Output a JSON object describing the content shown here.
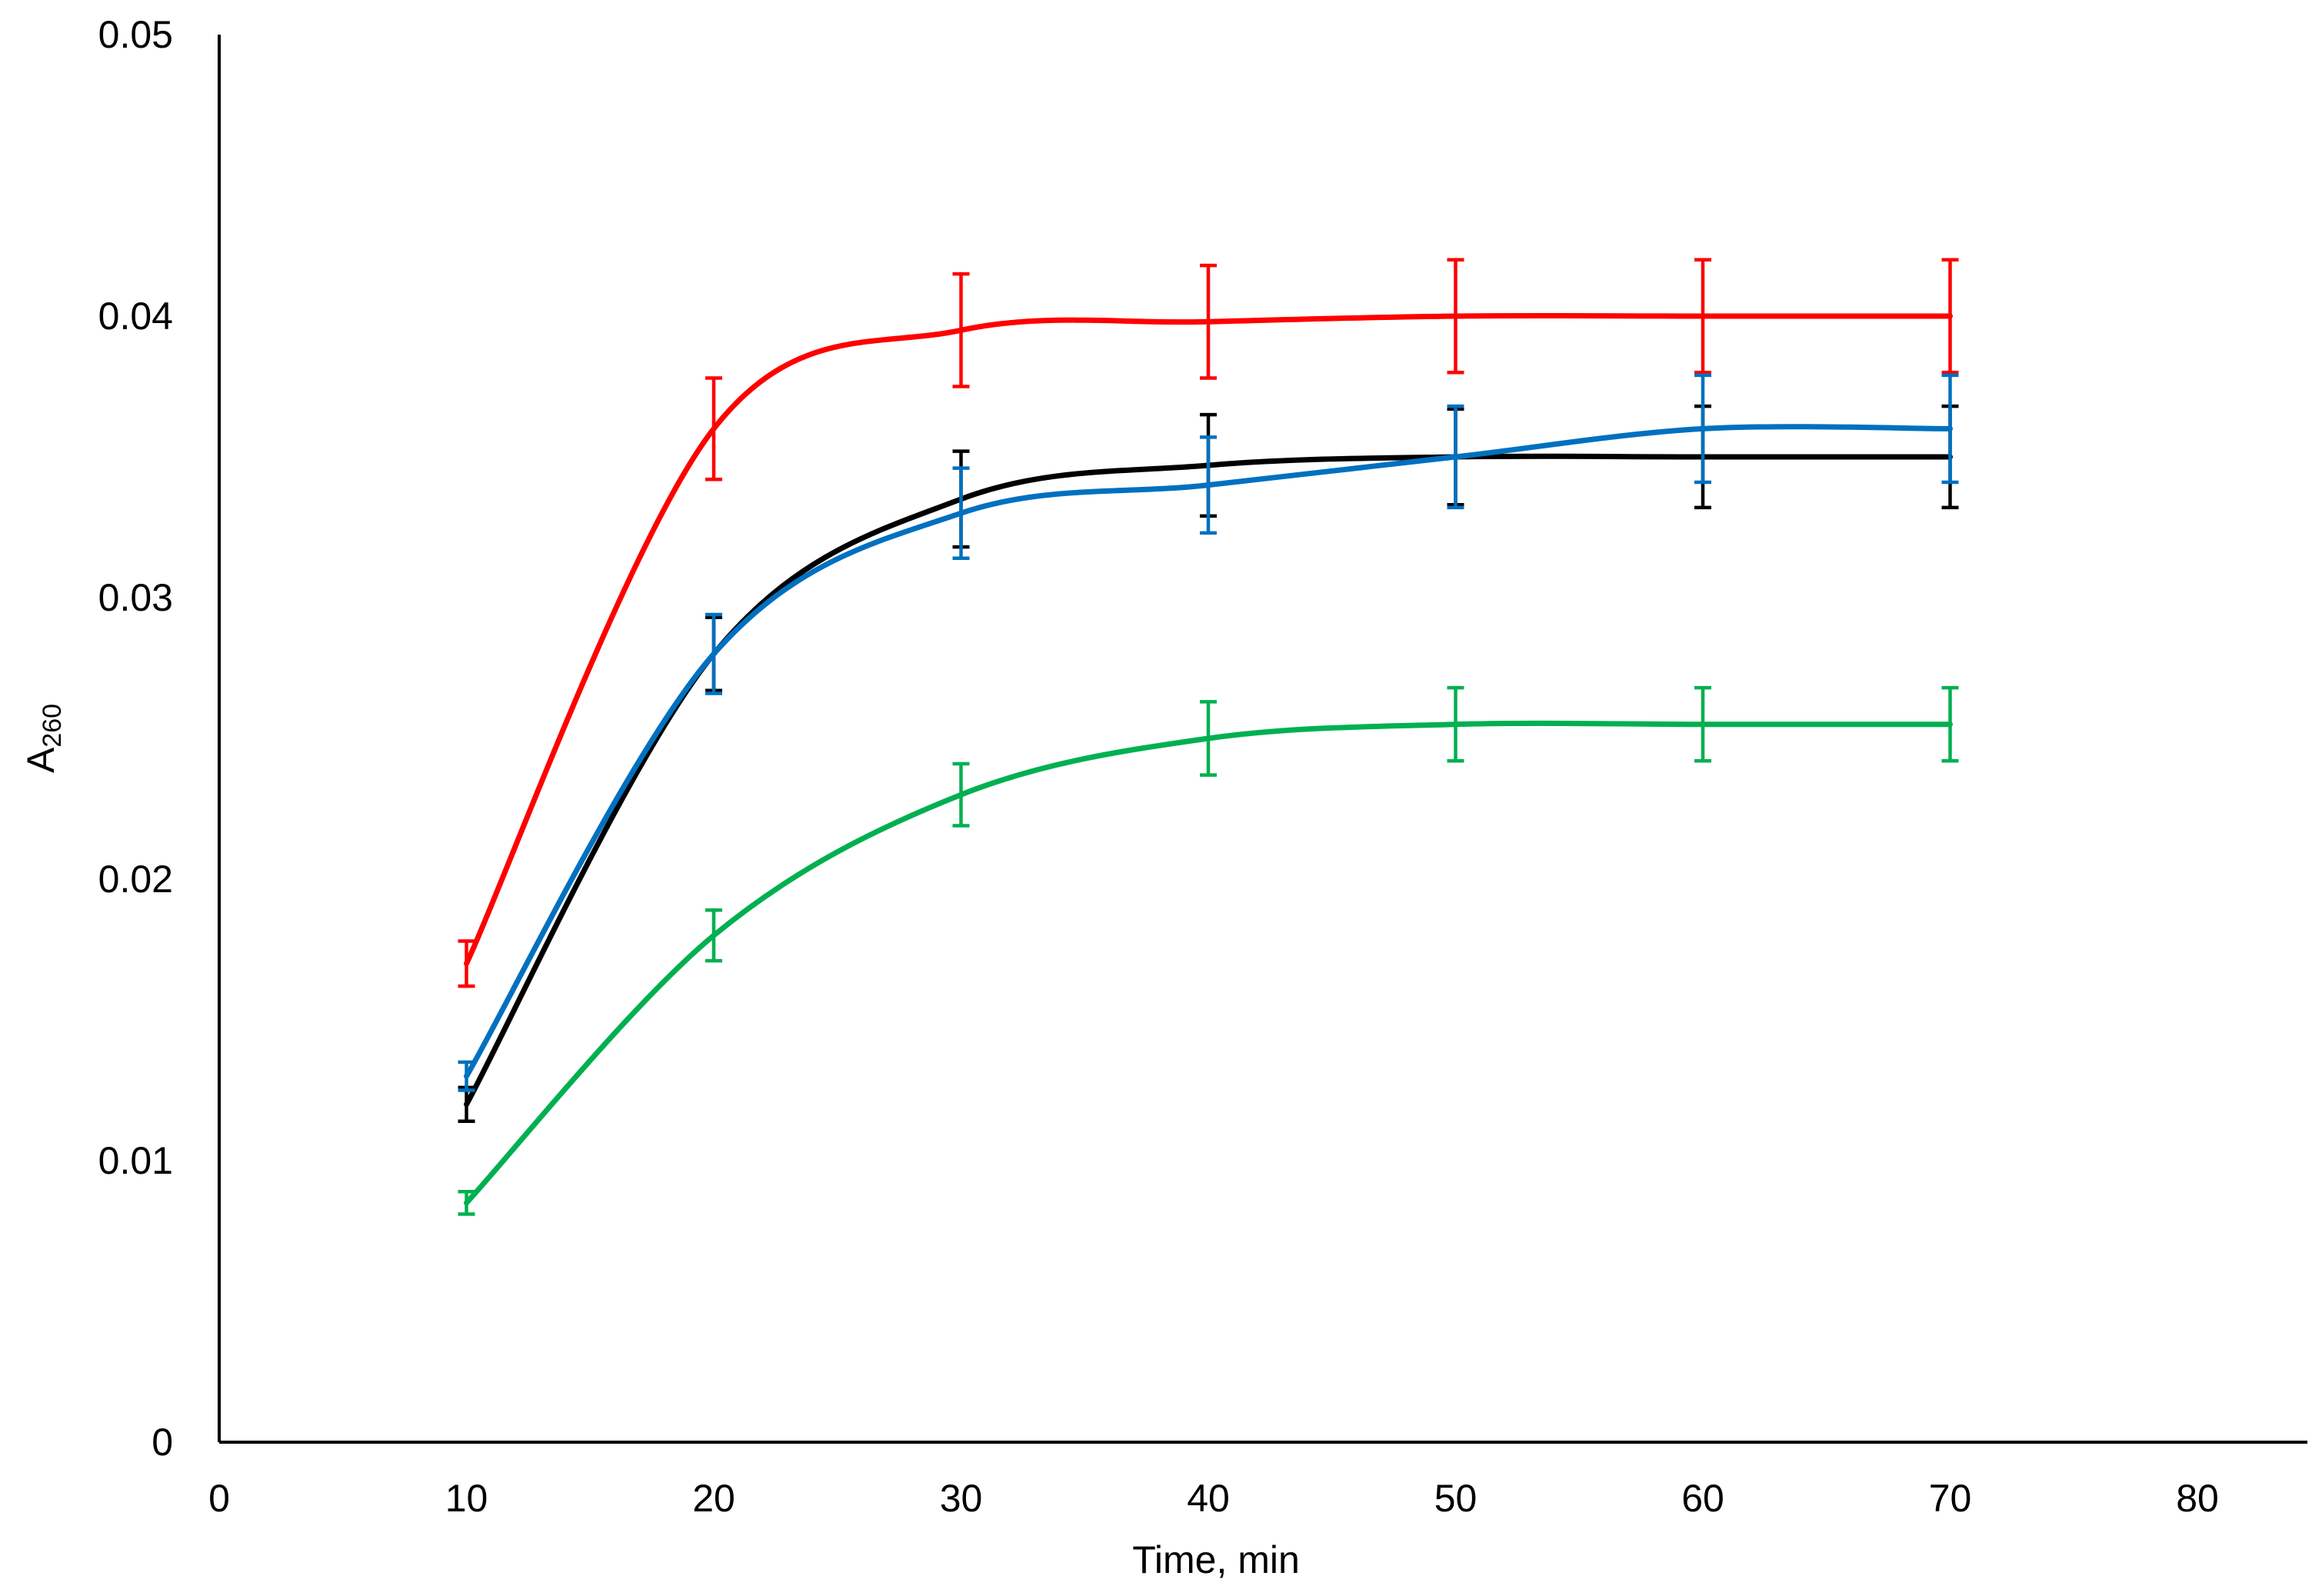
{
  "chart_data": {
    "type": "line",
    "title": "",
    "xlabel": "Time, min",
    "ylabel": {
      "main": "A",
      "subscript": "260"
    },
    "xlim": [
      0,
      85
    ],
    "ylim": [
      0,
      0.05
    ],
    "x_ticks": [
      0,
      10,
      20,
      30,
      40,
      50,
      60,
      70,
      80
    ],
    "x_tick_labels": [
      "0",
      "10",
      "20",
      "30",
      "40",
      "50",
      "60",
      "70",
      "80"
    ],
    "y_ticks": [
      0,
      0.01,
      0.02,
      0.03,
      0.04,
      0.05
    ],
    "y_tick_labels": [
      "0",
      "0.01",
      "0.02",
      "0.03",
      "0.04",
      "0.05"
    ],
    "grid": false,
    "legend": "none",
    "x": [
      10,
      20,
      30,
      40,
      50,
      60,
      70
    ],
    "series": [
      {
        "color": "#ff0000",
        "values": [
          0.017,
          0.036,
          0.0395,
          0.0398,
          0.04,
          0.04,
          0.04
        ],
        "errors": [
          0.0008,
          0.0018,
          0.002,
          0.002,
          0.002,
          0.002,
          0.002
        ]
      },
      {
        "color": "#000000",
        "values": [
          0.012,
          0.028,
          0.0335,
          0.0347,
          0.035,
          0.035,
          0.035
        ],
        "errors": [
          0.0006,
          0.0013,
          0.0017,
          0.0018,
          0.0017,
          0.0018,
          0.0018
        ]
      },
      {
        "color": "#0070c0",
        "values": [
          0.013,
          0.028,
          0.033,
          0.034,
          0.035,
          0.036,
          0.036
        ],
        "errors": [
          0.0005,
          0.0014,
          0.0016,
          0.0017,
          0.0018,
          0.0019,
          0.0019
        ]
      },
      {
        "color": "#00b050",
        "values": [
          0.0085,
          0.018,
          0.023,
          0.025,
          0.0255,
          0.0255,
          0.0255
        ],
        "errors": [
          0.0004,
          0.0009,
          0.0011,
          0.0013,
          0.0013,
          0.0013,
          0.0013
        ]
      }
    ]
  }
}
